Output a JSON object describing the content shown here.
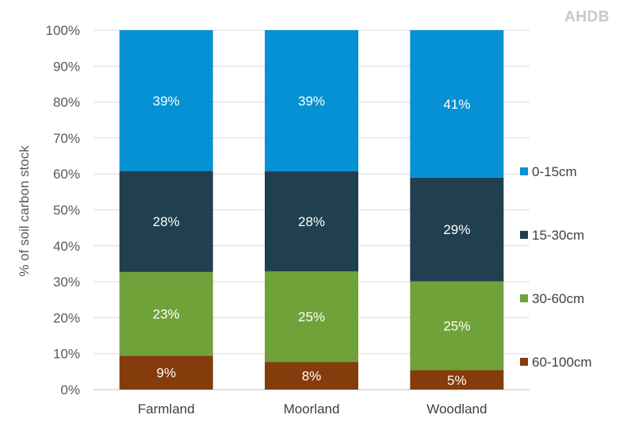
{
  "brand": {
    "logo_text": "AHDB"
  },
  "chart_data": {
    "type": "bar",
    "stacked": true,
    "categories": [
      "Farmland",
      "Moorland",
      "Woodland"
    ],
    "ylabel": "% of soil carbon stock",
    "ylim": [
      0,
      100
    ],
    "yticks": [
      "0%",
      "10%",
      "20%",
      "30%",
      "40%",
      "50%",
      "60%",
      "70%",
      "80%",
      "90%",
      "100%"
    ],
    "grid": true,
    "legend_position": "right",
    "series": [
      {
        "name": "60-100cm",
        "color": "#843c0c",
        "values": [
          9.4,
          7.7,
          5.4
        ],
        "labels": [
          "9%",
          "8%",
          "5%"
        ]
      },
      {
        "name": "30-60cm",
        "color": "#70a23a",
        "values": [
          23.3,
          25.2,
          24.7
        ],
        "labels": [
          "23%",
          "25%",
          "25%"
        ]
      },
      {
        "name": "15-30cm",
        "color": "#203f4f",
        "values": [
          28.1,
          27.8,
          28.9
        ],
        "labels": [
          "28%",
          "28%",
          "29%"
        ]
      },
      {
        "name": "0-15cm",
        "color": "#0591d3",
        "values": [
          39.2,
          39.3,
          41.0
        ],
        "labels": [
          "39%",
          "39%",
          "41%"
        ]
      }
    ]
  }
}
